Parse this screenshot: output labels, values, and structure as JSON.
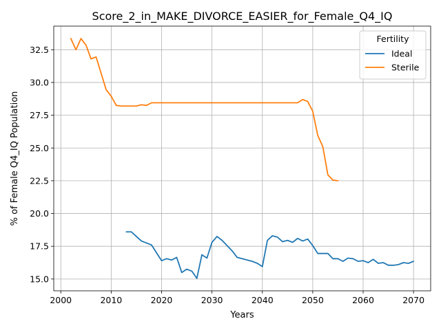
{
  "chart_data": {
    "type": "line",
    "title": "Score_2_in_MAKE_DIVORCE_EASIER_for_Female_Q4_IQ",
    "xlabel": "Years",
    "ylabel": "% of Female Q4_IQ Population",
    "xlim": [
      1998.6,
      2073.4
    ],
    "ylim": [
      14.1,
      34.3
    ],
    "xticks": [
      2000,
      2010,
      2020,
      2030,
      2040,
      2050,
      2060,
      2070
    ],
    "xtick_labels": [
      "2000",
      "2010",
      "2020",
      "2030",
      "2040",
      "2050",
      "2060",
      "2070"
    ],
    "yticks": [
      15.0,
      17.5,
      20.0,
      22.5,
      25.0,
      27.5,
      30.0,
      32.5
    ],
    "ytick_labels": [
      "15.0",
      "17.5",
      "20.0",
      "22.5",
      "25.0",
      "27.5",
      "30.0",
      "32.5"
    ],
    "grid": true,
    "legend": {
      "title": "Fertility",
      "placement": "top-right"
    },
    "series": [
      {
        "name": "Ideal",
        "color": "#1f77b4",
        "x": [
          2013,
          2014,
          2015,
          2016,
          2017,
          2018,
          2019,
          2020,
          2021,
          2022,
          2023,
          2024,
          2025,
          2026,
          2027,
          2028,
          2029,
          2030,
          2031,
          2032,
          2033,
          2034,
          2035,
          2036,
          2037,
          2038,
          2039,
          2040,
          2041,
          2042,
          2043,
          2044,
          2045,
          2046,
          2047,
          2048,
          2049,
          2050,
          2051,
          2052,
          2053,
          2054,
          2055,
          2056,
          2057,
          2058,
          2059,
          2060,
          2061,
          2062,
          2063,
          2064,
          2065,
          2066,
          2067,
          2068,
          2069,
          2070
        ],
        "y": [
          18.6,
          18.6,
          18.25,
          17.9,
          17.75,
          17.6,
          17.0,
          16.4,
          16.55,
          16.45,
          16.65,
          15.5,
          15.75,
          15.6,
          15.05,
          16.85,
          16.6,
          17.8,
          18.25,
          17.95,
          17.55,
          17.15,
          16.65,
          16.55,
          16.45,
          16.35,
          16.2,
          15.95,
          17.95,
          18.3,
          18.2,
          17.85,
          17.95,
          17.8,
          18.1,
          17.9,
          18.05,
          17.55,
          16.95,
          16.95,
          16.95,
          16.55,
          16.55,
          16.35,
          16.6,
          16.55,
          16.35,
          16.4,
          16.25,
          16.5,
          16.2,
          16.25,
          16.05,
          16.05,
          16.1,
          16.25,
          16.2,
          16.35
        ]
      },
      {
        "name": "Sterile",
        "color": "#ff7f0e",
        "x": [
          2002,
          2003,
          2004,
          2005,
          2006,
          2007,
          2008,
          2009,
          2010,
          2011,
          2012,
          2013,
          2014,
          2015,
          2016,
          2017,
          2018,
          2019,
          2020,
          2021,
          2022,
          2023,
          2024,
          2025,
          2026,
          2027,
          2028,
          2029,
          2030,
          2031,
          2032,
          2033,
          2034,
          2035,
          2036,
          2037,
          2038,
          2039,
          2040,
          2041,
          2042,
          2043,
          2044,
          2045,
          2046,
          2047,
          2048,
          2049,
          2050,
          2051,
          2052,
          2053,
          2054,
          2055
        ],
        "y": [
          33.35,
          32.5,
          33.35,
          32.85,
          31.8,
          31.95,
          30.7,
          29.45,
          28.95,
          28.25,
          28.2,
          28.2,
          28.2,
          28.2,
          28.3,
          28.25,
          28.45,
          28.45,
          28.45,
          28.45,
          28.45,
          28.45,
          28.45,
          28.45,
          28.45,
          28.45,
          28.45,
          28.45,
          28.45,
          28.45,
          28.45,
          28.45,
          28.45,
          28.45,
          28.45,
          28.45,
          28.45,
          28.45,
          28.45,
          28.45,
          28.45,
          28.45,
          28.45,
          28.45,
          28.45,
          28.45,
          28.7,
          28.55,
          27.8,
          25.95,
          25.1,
          22.95,
          22.55,
          22.5
        ]
      }
    ]
  }
}
